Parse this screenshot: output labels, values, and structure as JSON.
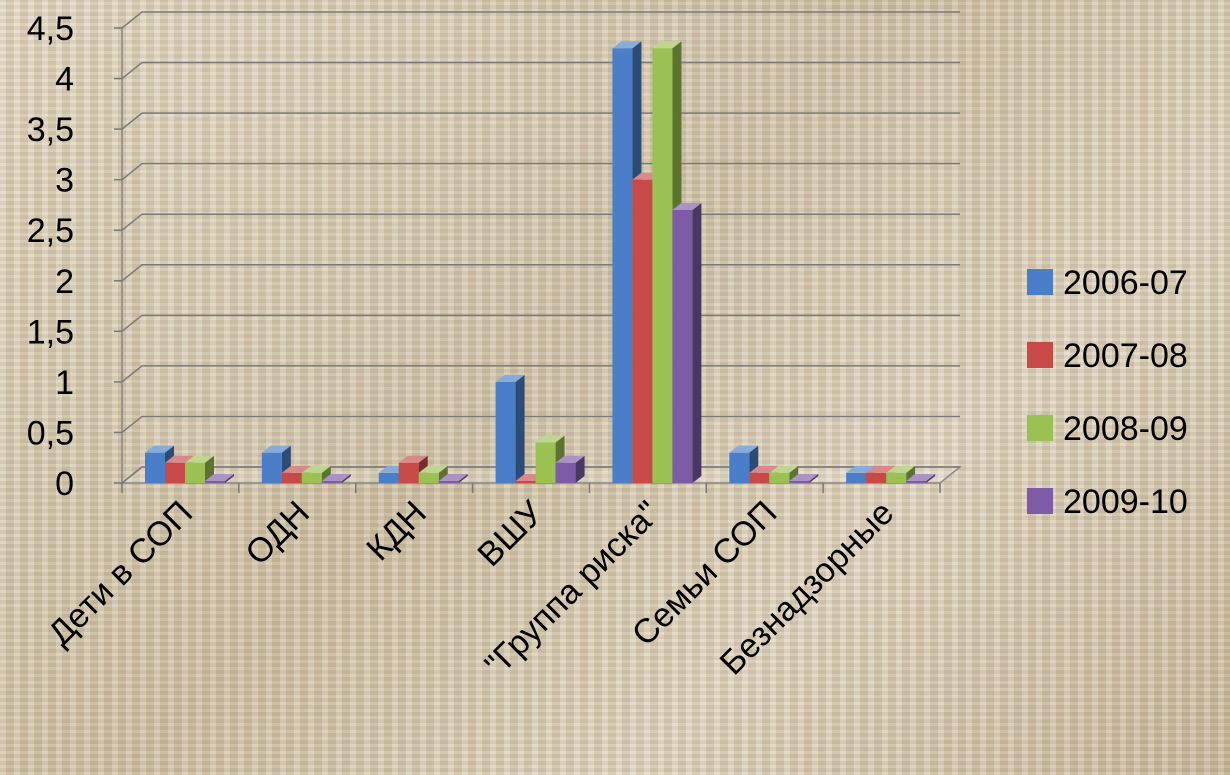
{
  "chart_data": {
    "type": "bar",
    "title": "",
    "xlabel": "",
    "ylabel": "",
    "categories": [
      "Дети в СОП",
      "ОДН",
      "КДН",
      "ВШУ",
      "\"Группа риска\"",
      "Семьи СОП",
      "Безнадзорные"
    ],
    "series": [
      {
        "name": "2006-07",
        "color": "#4a7ec8",
        "values": [
          0.3,
          0.3,
          0.1,
          1.0,
          4.3,
          0.3,
          0.1
        ]
      },
      {
        "name": "2007-08",
        "color": "#c84a48",
        "values": [
          0.2,
          0.1,
          0.2,
          0.0,
          3.0,
          0.1,
          0.1
        ]
      },
      {
        "name": "2008-09",
        "color": "#9bc152",
        "values": [
          0.2,
          0.1,
          0.1,
          0.4,
          4.3,
          0.1,
          0.1
        ]
      },
      {
        "name": "2009-10",
        "color": "#7d5ba6",
        "values": [
          0.0,
          0.0,
          0.0,
          0.2,
          2.7,
          0.0,
          0.0
        ]
      }
    ],
    "yticks": [
      "0",
      "0,5",
      "1",
      "1,5",
      "2",
      "2,5",
      "3",
      "3,5",
      "4",
      "4,5"
    ],
    "ylim": [
      0,
      4.5
    ],
    "grid": true,
    "legend": "right",
    "style": "3d-clustered-column"
  }
}
